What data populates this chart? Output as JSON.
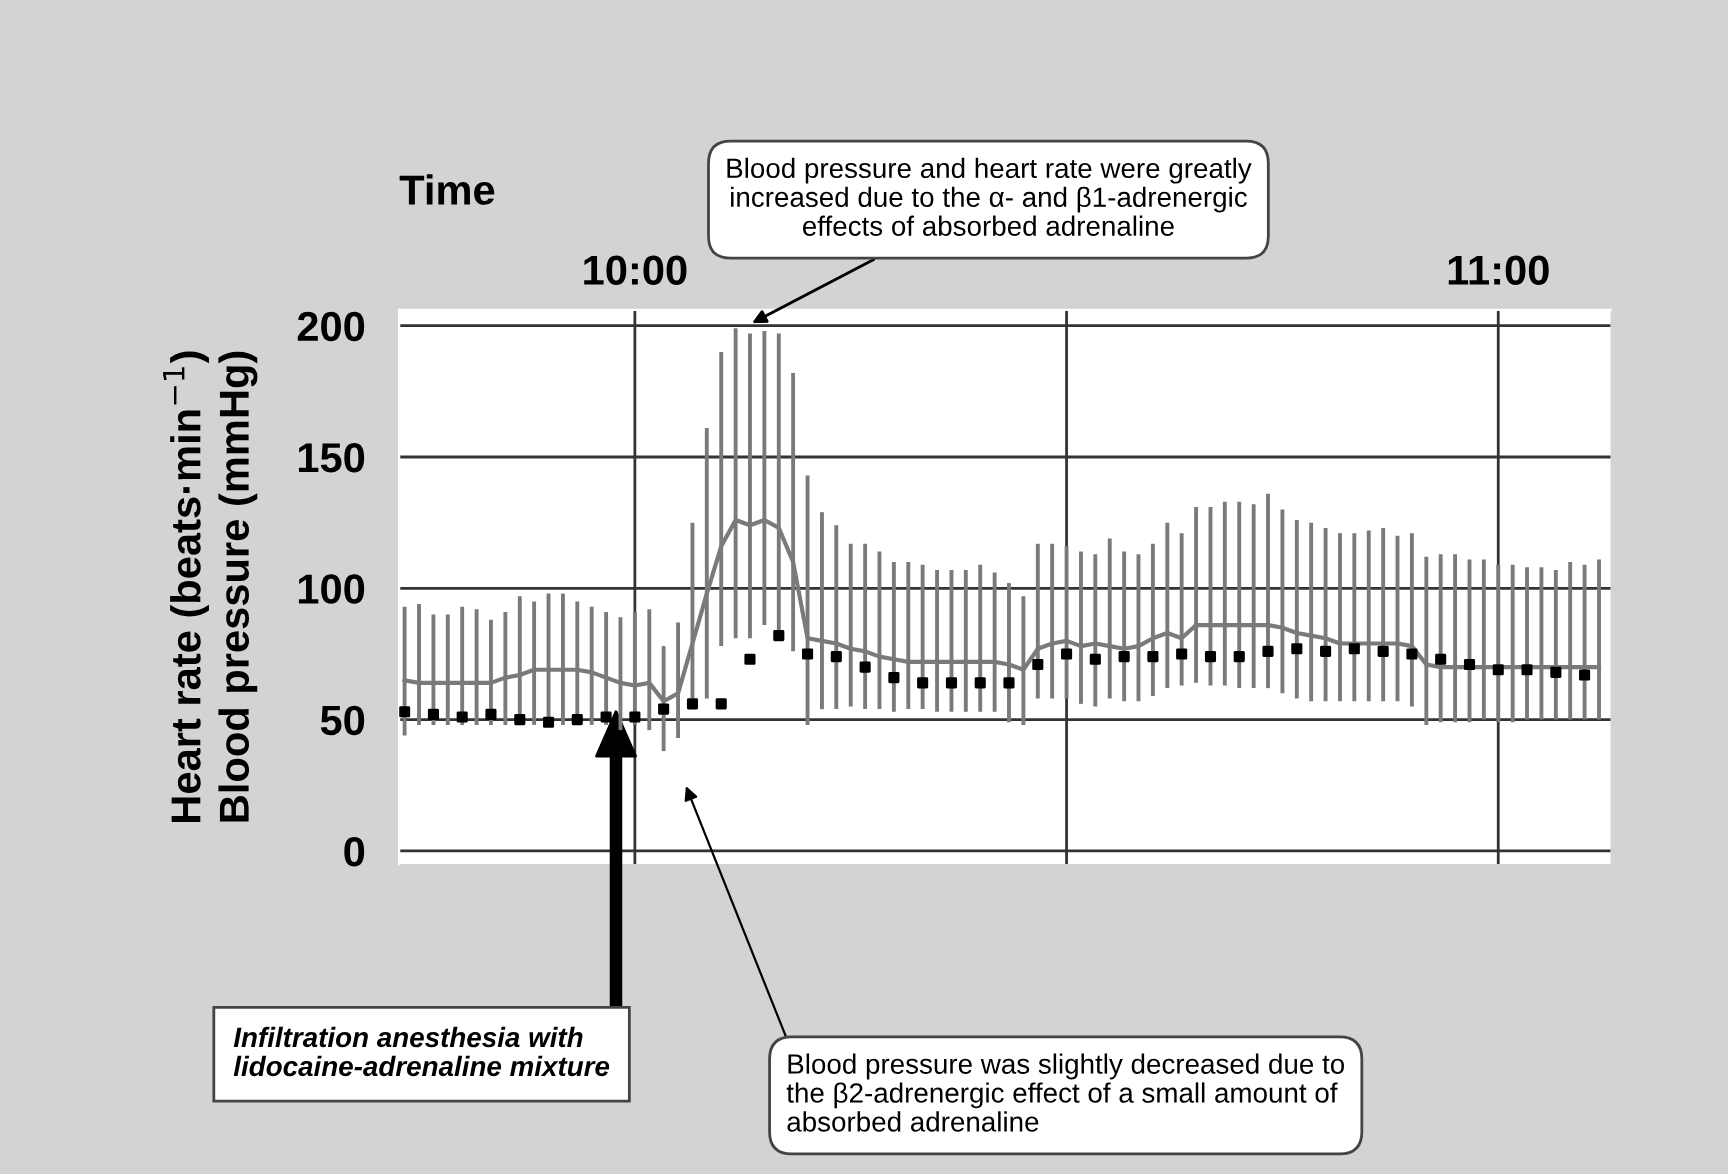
{
  "chart_data": {
    "type": "bar",
    "xlabel": "Time",
    "ylabel": "Heart rate (beats·min$^{−1}$)\nBlood pressure (mmHg)",
    "xlim": [
      9.727,
      11.13
    ],
    "xticks": [
      {
        "value": 10,
        "label": "10:00"
      },
      {
        "value": 10.5,
        "label": null
      },
      {
        "value": 11,
        "label": "11:00"
      }
    ],
    "ylim": [
      -5,
      206
    ],
    "yticks": [
      0,
      50,
      100,
      150,
      200
    ],
    "grid": true,
    "tick_labels": "xy",
    "series": [
      {
        "color": "#7a7a7a",
        "x": [
          9.7333,
          9.75,
          9.7667,
          9.7833,
          9.8,
          9.8167,
          9.8333,
          9.85,
          9.8667,
          9.8833,
          9.9,
          9.9167,
          9.9333,
          9.95,
          9.9667,
          9.9833,
          10.0,
          10.0167,
          10.0333,
          10.05,
          10.0667,
          10.0833,
          10.1,
          10.1167,
          10.1333,
          10.15,
          10.1667,
          10.1833,
          10.2,
          10.2167,
          10.2333,
          10.25,
          10.2667,
          10.2833,
          10.3,
          10.3167,
          10.3333,
          10.35,
          10.3667,
          10.3833,
          10.4,
          10.4167,
          10.4333,
          10.45,
          10.4667,
          10.4833,
          10.5,
          10.5167,
          10.5333,
          10.55,
          10.5667,
          10.5833,
          10.6,
          10.6167,
          10.6333,
          10.65,
          10.6667,
          10.6833,
          10.7,
          10.7167,
          10.7333,
          10.75,
          10.7667,
          10.7833,
          10.8,
          10.8167,
          10.8333,
          10.85,
          10.8667,
          10.8833,
          10.9,
          10.9167,
          10.9333,
          10.95,
          10.9667,
          10.9833,
          11.0,
          11.0167,
          11.0333,
          11.05,
          11.0667,
          11.0833,
          11.1,
          11.1167
        ],
        "base": [
          44,
          48,
          48,
          48,
          48,
          48,
          48,
          48,
          48,
          48,
          48,
          48,
          48,
          48,
          48,
          46,
          48,
          46,
          38,
          43,
          58,
          58,
          78,
          81,
          81,
          86,
          83,
          76,
          48,
          54,
          54,
          55,
          54,
          54,
          53,
          54,
          54,
          53,
          53,
          53,
          53,
          53,
          49,
          48,
          58,
          58,
          58,
          56,
          55,
          58,
          57,
          57,
          59,
          62,
          63,
          64,
          63,
          63,
          62,
          62,
          62,
          60,
          58,
          57,
          57,
          57,
          57,
          57,
          57,
          57,
          55,
          48,
          49,
          49,
          49,
          50,
          49,
          49,
          50,
          50,
          50,
          50,
          50,
          50
        ],
        "values": [
          49,
          46,
          42,
          42,
          45,
          44,
          40,
          43,
          49,
          47,
          50,
          50,
          47,
          45,
          43,
          43,
          43,
          46,
          40,
          44,
          67,
          103,
          112,
          118,
          116,
          112,
          114,
          106,
          95,
          75,
          70,
          62,
          63,
          60,
          57,
          56,
          55,
          54,
          54,
          54,
          56,
          53,
          53,
          49,
          59,
          59,
          58,
          58,
          58,
          61,
          57,
          56,
          58,
          63,
          58,
          67,
          68,
          70,
          71,
          70,
          74,
          70,
          68,
          68,
          66,
          64,
          64,
          65,
          66,
          63,
          66,
          64,
          64,
          64,
          62,
          61,
          60,
          60,
          58,
          58,
          57,
          60,
          59,
          61
        ]
      },
      {
        "type": "line",
        "color": "#7a7a7a",
        "x": [
          9.7333,
          9.75,
          9.7667,
          9.7833,
          9.8,
          9.8167,
          9.8333,
          9.85,
          9.8667,
          9.8833,
          9.9,
          9.9167,
          9.9333,
          9.95,
          9.9667,
          9.9833,
          10.0,
          10.0167,
          10.0333,
          10.05,
          10.0667,
          10.0833,
          10.1,
          10.1167,
          10.1333,
          10.15,
          10.1667,
          10.1833,
          10.2,
          10.2167,
          10.2333,
          10.25,
          10.2667,
          10.2833,
          10.3,
          10.3167,
          10.3333,
          10.35,
          10.3667,
          10.3833,
          10.4,
          10.4167,
          10.4333,
          10.45,
          10.4667,
          10.4833,
          10.5,
          10.5167,
          10.5333,
          10.55,
          10.5667,
          10.5833,
          10.6,
          10.6167,
          10.6333,
          10.65,
          10.6667,
          10.6833,
          10.7,
          10.7167,
          10.7333,
          10.75,
          10.7667,
          10.7833,
          10.8,
          10.8167,
          10.8333,
          10.85,
          10.8667,
          10.8833,
          10.9,
          10.9167,
          10.9333,
          10.95,
          10.9667,
          10.9833,
          11.0,
          11.0167,
          11.0333,
          11.05,
          11.0667,
          11.0833,
          11.1,
          11.1167
        ],
        "values": [
          65,
          64,
          64,
          64,
          64,
          64,
          64,
          66,
          67,
          69,
          69,
          69,
          69,
          68,
          66,
          64,
          63,
          64,
          57,
          60,
          79,
          98,
          116,
          126,
          124,
          126,
          123,
          110,
          81,
          80,
          79,
          77,
          76,
          74,
          73,
          72,
          72,
          72,
          72,
          72,
          72,
          72,
          71,
          69,
          77,
          79,
          80,
          78,
          79,
          78,
          77,
          78,
          81,
          83,
          81,
          86,
          86,
          86,
          86,
          86,
          86,
          85,
          83,
          82,
          81,
          79,
          79,
          79,
          79,
          79,
          78,
          71,
          70,
          70,
          70,
          70,
          70,
          70,
          70,
          70,
          70,
          70,
          70,
          70
        ]
      },
      {
        "type": "scatter",
        "color": "#000000",
        "marker": "square",
        "x": [
          9.7333,
          9.7667,
          9.8,
          9.8333,
          9.8667,
          9.9,
          9.9333,
          9.9667,
          10.0,
          10.0333,
          10.0667,
          10.1,
          10.1333,
          10.1667,
          10.2,
          10.2333,
          10.2667,
          10.3,
          10.3333,
          10.3667,
          10.4,
          10.4333,
          10.4667,
          10.5,
          10.5333,
          10.5667,
          10.6,
          10.6333,
          10.6667,
          10.7,
          10.7333,
          10.7667,
          10.8,
          10.8333,
          10.8667,
          10.9,
          10.9333,
          10.9667,
          11.0,
          11.0333,
          11.0667,
          11.1
        ],
        "values": [
          53,
          52,
          51,
          52,
          50,
          49,
          50,
          51,
          51,
          54,
          56,
          56,
          73,
          82,
          75,
          74,
          70,
          66,
          64,
          64,
          64,
          64,
          71,
          75,
          73,
          74,
          74,
          75,
          74,
          74,
          76,
          77,
          76,
          77,
          76,
          75,
          73,
          71,
          69,
          69,
          68,
          67
        ]
      }
    ],
    "annotations": [
      {
        "text": "Blood pressure and heart rate were greatly\nincreased due to the α- and β1-adrenergic\neffects of absorbed adrenaline",
        "x": 10.13,
        "y": 200
      },
      "Infiltration anesthesia with\nlidocaine-adrenaline mixture",
      "Blood pressure was slightly decreased due to\nthe β2-adrenergic effect of a small amount of\nabsorbed adrenaline"
    ]
  }
}
